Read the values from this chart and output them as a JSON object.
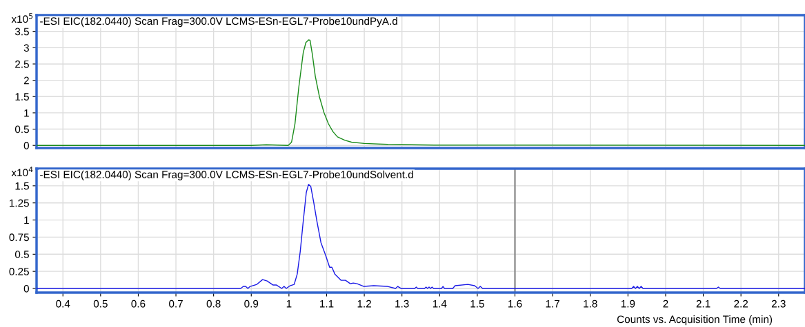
{
  "chart_data": [
    {
      "type": "line",
      "title": "-ESI EIC(182.0440) Scan Frag=300.0V LCMS-ESn-EGL7-Probe10undPyA.d",
      "ylabel": "x10$^{5}$",
      "tick_labels": "y",
      "grid": true,
      "xlim": [
        0.33,
        2.37
      ],
      "xticks": [
        0.4,
        0.5,
        0.6,
        0.7,
        0.8,
        0.9,
        1,
        1.1,
        1.2,
        1.3,
        1.4,
        1.5,
        1.6,
        1.7,
        1.8,
        1.9,
        2,
        2.1,
        2.2,
        2.3
      ],
      "ylim": [
        -0.08,
        4.0
      ],
      "yticks": [
        0,
        0.5,
        1,
        1.5,
        2,
        2.5,
        3,
        3.5
      ],
      "series": [
        {
          "color": "#1a8c1a",
          "x": [
            0.33,
            0.9,
            0.94,
            0.97,
            0.998,
            1.007,
            1.016,
            1.026,
            1.038,
            1.045,
            1.052,
            1.056,
            1.062,
            1.07,
            1.081,
            1.093,
            1.105,
            1.117,
            1.129,
            1.148,
            1.166,
            1.2,
            1.263,
            1.386,
            1.6,
            2.37
          ],
          "values": [
            0,
            0,
            0.02,
            0.01,
            0,
            0.1,
            0.66,
            1.77,
            2.85,
            3.16,
            3.24,
            3.23,
            2.81,
            2.12,
            1.49,
            1.01,
            0.66,
            0.42,
            0.26,
            0.16,
            0.1,
            0.06,
            0.03,
            0.01,
            0.01,
            0
          ]
        }
      ]
    },
    {
      "type": "line",
      "title": "-ESI EIC(182.0440) Scan Frag=300.0V LCMS-ESn-EGL7-Probe10undSolvent.d",
      "ylabel": "x10$^{4}$",
      "xlabel": "Counts vs. Acquisition Time (min)",
      "grid": true,
      "xlim": [
        0.33,
        2.37
      ],
      "xticks": [
        0.4,
        0.5,
        0.6,
        0.7,
        0.8,
        0.9,
        1,
        1.1,
        1.2,
        1.3,
        1.4,
        1.5,
        1.6,
        1.7,
        1.8,
        1.9,
        2,
        2.1,
        2.2,
        2.3
      ],
      "ylim": [
        -0.06,
        1.75
      ],
      "yticks": [
        0,
        0.25,
        0.5,
        0.75,
        1,
        1.25,
        1.5
      ],
      "ref_lines": [
        {
          "axis": "x",
          "value": 1.6,
          "color": "#808080"
        }
      ],
      "series": [
        {
          "color": "#1a1ae6",
          "x": [
            0.33,
            0.872,
            0.879,
            0.885,
            0.891,
            0.897,
            0.915,
            0.93,
            0.942,
            0.958,
            0.967,
            0.981,
            0.987,
            0.993,
            1.003,
            1.014,
            1.022,
            1.03,
            1.037,
            1.046,
            1.052,
            1.058,
            1.066,
            1.074,
            1.085,
            1.097,
            1.108,
            1.114,
            1.122,
            1.138,
            1.15,
            1.163,
            1.171,
            1.181,
            1.199,
            1.225,
            1.262,
            1.283,
            1.289,
            1.298,
            1.334,
            1.338,
            1.342,
            1.36,
            1.364,
            1.368,
            1.372,
            1.376,
            1.38,
            1.384,
            1.405,
            1.409,
            1.413,
            1.435,
            1.441,
            1.475,
            1.493,
            1.502,
            1.508,
            1.514,
            1.91,
            1.915,
            1.92,
            1.925,
            1.93,
            1.935,
            1.94,
            2.135,
            2.14,
            2.145,
            2.37
          ],
          "values": [
            0,
            0,
            0.03,
            0.03,
            0,
            0.03,
            0.06,
            0.13,
            0.11,
            0.05,
            0.05,
            0,
            0.03,
            0,
            0.04,
            0.06,
            0.21,
            0.54,
            0.93,
            1.4,
            1.52,
            1.49,
            1.25,
            0.99,
            0.67,
            0.49,
            0.31,
            0.31,
            0.21,
            0.12,
            0.12,
            0.07,
            0.08,
            0.07,
            0.03,
            0.04,
            0.03,
            0,
            0.03,
            0,
            0,
            0.02,
            0,
            0,
            0.02,
            0,
            0.02,
            0,
            0.02,
            0,
            0,
            0.03,
            0,
            0,
            0.04,
            0.06,
            0.04,
            0,
            0.03,
            0,
            0,
            0.03,
            0,
            0.03,
            0,
            0.03,
            0,
            0,
            0.02,
            0,
            0
          ]
        }
      ]
    }
  ]
}
